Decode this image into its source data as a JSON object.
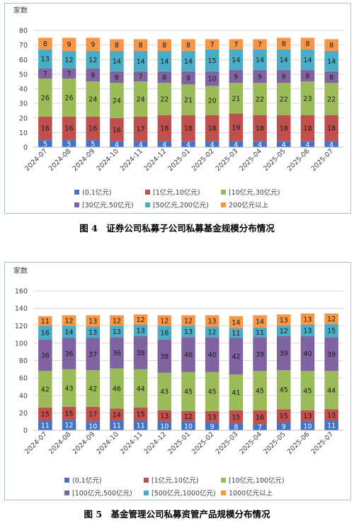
{
  "charts": [
    {
      "caption": "图 4　证券公司私募子公司私募基金规模分布情况",
      "chart_data": {
        "type": "bar",
        "stacked": true,
        "ylabel": "家数",
        "ylim": [
          0,
          80
        ],
        "yticks": [
          0,
          10,
          20,
          30,
          40,
          50,
          60,
          70,
          80
        ],
        "grid": true,
        "legend_position": "bottom",
        "categories": [
          "2024-07",
          "2024-08",
          "2024-09",
          "2024-10",
          "2024-11",
          "2024-12",
          "2025-01",
          "2025-02",
          "2025-03",
          "2025-04",
          "2025-05",
          "2025-06",
          "2025-07"
        ],
        "series": [
          {
            "name": "(0,1亿元)",
            "color": "#4472c4",
            "values": [
              5,
              5,
              5,
              4,
              4,
              4,
              4,
              4,
              4,
              4,
              4,
              4,
              4
            ]
          },
          {
            "name": "[1亿元,10亿元)",
            "color": "#c0504d",
            "values": [
              16,
              16,
              16,
              16,
              17,
              18,
              18,
              18,
              19,
              18,
              18,
              18,
              18
            ]
          },
          {
            "name": "[10亿元,30亿元)",
            "color": "#9bbb59",
            "values": [
              26,
              26,
              24,
              24,
              24,
              22,
              21,
              20,
              21,
              22,
              22,
              23,
              22
            ]
          },
          {
            "name": "[30亿元,50亿元)",
            "color": "#8064a2",
            "values": [
              7,
              7,
              9,
              8,
              7,
              8,
              9,
              10,
              9,
              9,
              9,
              8,
              8
            ]
          },
          {
            "name": "[50亿元,200亿元)",
            "color": "#4bacc6",
            "values": [
              13,
              12,
              12,
              14,
              14,
              14,
              14,
              15,
              14,
              14,
              14,
              14,
              14
            ]
          },
          {
            "name": "200亿元以上",
            "color": "#f79646",
            "values": [
              8,
              9,
              9,
              8,
              8,
              8,
              8,
              7,
              7,
              7,
              8,
              8,
              8
            ]
          }
        ]
      }
    },
    {
      "caption": "图 5　基金管理公司私募资管产品规模分布情况",
      "chart_data": {
        "type": "bar",
        "stacked": true,
        "ylabel": "家数",
        "ylim": [
          0,
          160
        ],
        "yticks": [
          0,
          20,
          40,
          60,
          80,
          100,
          120,
          140,
          160
        ],
        "grid": true,
        "legend_position": "bottom",
        "categories": [
          "2024-07",
          "2024-08",
          "2024-09",
          "2024-10",
          "2024-11",
          "2024-12",
          "2025-01",
          "2025-02",
          "2025-03",
          "2025-04",
          "2025-05",
          "2025-06",
          "2025-07"
        ],
        "series": [
          {
            "name": "(0,1亿元)",
            "color": "#4472c4",
            "values": [
              11,
              12,
              10,
              11,
              11,
              10,
              10,
              9,
              8,
              7,
              9,
              10,
              11
            ]
          },
          {
            "name": "[1亿元,10亿元)",
            "color": "#c0504d",
            "values": [
              15,
              15,
              17,
              14,
              15,
              13,
              12,
              13,
              15,
              16,
              15,
              13,
              13
            ]
          },
          {
            "name": "[10亿元,100亿元)",
            "color": "#9bbb59",
            "values": [
              42,
              43,
              42,
              46,
              44,
              43,
              45,
              45,
              41,
              45,
              45,
              45,
              44
            ]
          },
          {
            "name": "[100亿元,500亿元)",
            "color": "#8064a2",
            "values": [
              36,
              36,
              37,
              36,
              38,
              38,
              40,
              40,
              42,
              39,
              39,
              40,
              39
            ]
          },
          {
            "name": "[500亿元,1000亿元)",
            "color": "#4bacc6",
            "values": [
              16,
              14,
              13,
              13,
              13,
              16,
              13,
              12,
              11,
              11,
              12,
              13,
              15
            ]
          },
          {
            "name": "1000亿元以上",
            "color": "#f79646",
            "values": [
              11,
              12,
              13,
              12,
              12,
              12,
              12,
              13,
              14,
              14,
              13,
              13,
              12
            ]
          }
        ]
      }
    }
  ]
}
